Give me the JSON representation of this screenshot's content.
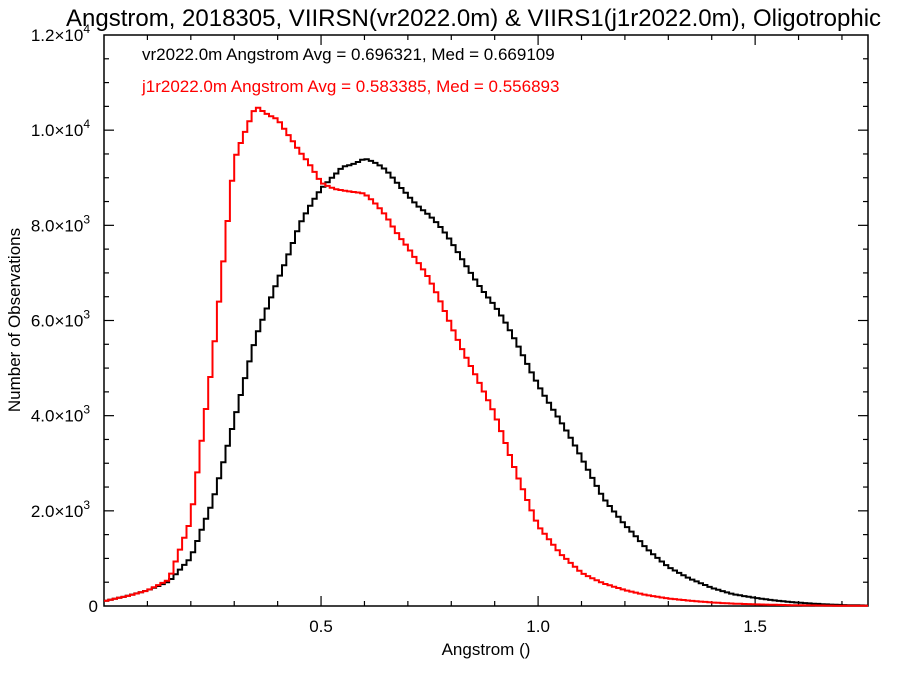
{
  "chart_data": {
    "type": "histogram-step",
    "title": "Angstrom, 2018305, VIIRSN(vr2022.0m) & VIIRS1(j1r2022.0m), Oligotrophic",
    "xlabel": "Angstrom ()",
    "ylabel": "Number of Observations",
    "xlim": [
      0.0,
      1.76
    ],
    "ylim": [
      0,
      12000
    ],
    "x_ticks": [
      {
        "value": 0.5,
        "label": "0.5"
      },
      {
        "value": 1.0,
        "label": "1.0"
      },
      {
        "value": 1.5,
        "label": "1.5"
      }
    ],
    "y_ticks": [
      {
        "value": 0,
        "mant": "0",
        "exp": ""
      },
      {
        "value": 2000,
        "mant": "2.0×10",
        "exp": "3"
      },
      {
        "value": 4000,
        "mant": "4.0×10",
        "exp": "3"
      },
      {
        "value": 6000,
        "mant": "6.0×10",
        "exp": "3"
      },
      {
        "value": 8000,
        "mant": "8.0×10",
        "exp": "3"
      },
      {
        "value": 10000,
        "mant": "1.0×10",
        "exp": "4"
      },
      {
        "value": 12000,
        "mant": "1.2×10",
        "exp": "4"
      }
    ],
    "annotations": [
      {
        "text": "vr2022.0m Angstrom Avg = 0.696321, Med = 0.669109",
        "color": "#000000"
      },
      {
        "text": "j1r2022.0m Angstrom Avg = 0.583385, Med = 0.556893",
        "color": "#ff0000"
      }
    ],
    "series": [
      {
        "color": "#000000",
        "points": [
          [
            0.0,
            100
          ],
          [
            0.05,
            200
          ],
          [
            0.1,
            330
          ],
          [
            0.15,
            520
          ],
          [
            0.2,
            1000
          ],
          [
            0.25,
            2200
          ],
          [
            0.3,
            3900
          ],
          [
            0.35,
            5600
          ],
          [
            0.4,
            6900
          ],
          [
            0.45,
            8000
          ],
          [
            0.5,
            8700
          ],
          [
            0.55,
            9300
          ],
          [
            0.6,
            9400
          ],
          [
            0.65,
            9100
          ],
          [
            0.7,
            8700
          ],
          [
            0.75,
            8200
          ],
          [
            0.8,
            7600
          ],
          [
            0.85,
            7000
          ],
          [
            0.9,
            6300
          ],
          [
            0.95,
            5500
          ],
          [
            1.0,
            4700
          ],
          [
            1.05,
            3900
          ],
          [
            1.1,
            3100
          ],
          [
            1.15,
            2300
          ],
          [
            1.2,
            1700
          ],
          [
            1.25,
            1200
          ],
          [
            1.3,
            830
          ],
          [
            1.35,
            570
          ],
          [
            1.4,
            380
          ],
          [
            1.45,
            250
          ],
          [
            1.5,
            170
          ],
          [
            1.55,
            110
          ],
          [
            1.6,
            70
          ],
          [
            1.65,
            40
          ],
          [
            1.7,
            20
          ],
          [
            1.76,
            10
          ]
        ]
      },
      {
        "color": "#ff0000",
        "points": [
          [
            0.0,
            100
          ],
          [
            0.05,
            200
          ],
          [
            0.1,
            330
          ],
          [
            0.15,
            550
          ],
          [
            0.2,
            1800
          ],
          [
            0.25,
            5200
          ],
          [
            0.3,
            9300
          ],
          [
            0.35,
            10500
          ],
          [
            0.4,
            10300
          ],
          [
            0.45,
            9500
          ],
          [
            0.5,
            8900
          ],
          [
            0.55,
            8800
          ],
          [
            0.6,
            8600
          ],
          [
            0.65,
            8200
          ],
          [
            0.7,
            7600
          ],
          [
            0.75,
            6800
          ],
          [
            0.8,
            5900
          ],
          [
            0.85,
            5000
          ],
          [
            0.9,
            4000
          ],
          [
            0.95,
            2800
          ],
          [
            1.0,
            1700
          ],
          [
            1.05,
            1100
          ],
          [
            1.1,
            700
          ],
          [
            1.15,
            480
          ],
          [
            1.2,
            330
          ],
          [
            1.25,
            230
          ],
          [
            1.3,
            160
          ],
          [
            1.35,
            110
          ],
          [
            1.4,
            75
          ],
          [
            1.45,
            50
          ],
          [
            1.5,
            35
          ],
          [
            1.55,
            25
          ],
          [
            1.6,
            15
          ],
          [
            1.65,
            10
          ],
          [
            1.7,
            6
          ],
          [
            1.76,
            3
          ]
        ]
      }
    ]
  }
}
